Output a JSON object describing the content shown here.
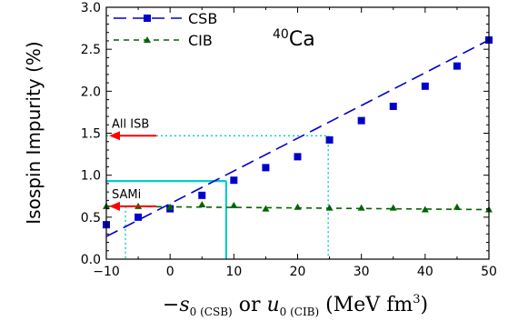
{
  "chart_data": {
    "type": "scatter",
    "nucleus_mass": "40",
    "nucleus_symbol": "Ca",
    "ylabel": "Isospin Impurity (%)",
    "xlabel_a": "−s",
    "xlabel_a_sub": "0 (CSB)",
    "xlabel_or": " or ",
    "xlabel_b": "u",
    "xlabel_b_sub": "0 (CIB)",
    "xlabel_unit": " (MeV fm",
    "xlabel_unit_sup": "3",
    "xlabel_close": ")",
    "xlim": [
      -10,
      50
    ],
    "ylim": [
      0.0,
      3.0
    ],
    "xticks": [
      -10,
      0,
      10,
      20,
      30,
      40,
      50
    ],
    "xtick_labels": [
      "−10",
      "0",
      "10",
      "20",
      "30",
      "40",
      "50"
    ],
    "yticks": [
      0.0,
      0.5,
      1.0,
      1.5,
      2.0,
      2.5,
      3.0
    ],
    "ytick_labels": [
      "0.0",
      "0.5",
      "1.0",
      "1.5",
      "2.0",
      "2.5",
      "3.0"
    ],
    "legend_position": "top-left",
    "series": [
      {
        "name": "CSB",
        "color": "#0000cc",
        "marker": "square",
        "line_style": "long-dash",
        "x": [
          -10,
          -5,
          0,
          5,
          10,
          15,
          20,
          25,
          30,
          35,
          40,
          45,
          50
        ],
        "y": [
          0.41,
          0.5,
          0.6,
          0.76,
          0.94,
          1.09,
          1.22,
          1.42,
          1.65,
          1.82,
          2.06,
          2.3,
          2.61
        ],
        "fit": {
          "x": [
            -10,
            50
          ],
          "y": [
            0.27,
            2.61
          ]
        }
      },
      {
        "name": "CIB",
        "color": "#006400",
        "marker": "triangle",
        "line_style": "short-dash",
        "x": [
          -10,
          -5,
          0,
          5,
          10,
          15,
          20,
          25,
          30,
          35,
          40,
          45,
          50
        ],
        "y": [
          0.63,
          0.63,
          0.62,
          0.65,
          0.64,
          0.6,
          0.62,
          0.61,
          0.61,
          0.61,
          0.59,
          0.62,
          0.59
        ],
        "fit": {
          "x": [
            -10,
            50
          ],
          "y": [
            0.63,
            0.59
          ]
        }
      }
    ],
    "annotations": [
      {
        "label": "All ISB",
        "y": 1.47,
        "color": "#ff0000",
        "dotted_color": "#00cccc",
        "dotted_x": 24.8
      },
      {
        "label": "SAMi",
        "y": 0.63,
        "color": "#ff0000",
        "dotted_color": "#00cccc",
        "dotted_x": -7.0
      },
      {
        "label": "",
        "y": 0.93,
        "color": "#00cccc",
        "solid_x": 8.8
      }
    ]
  }
}
